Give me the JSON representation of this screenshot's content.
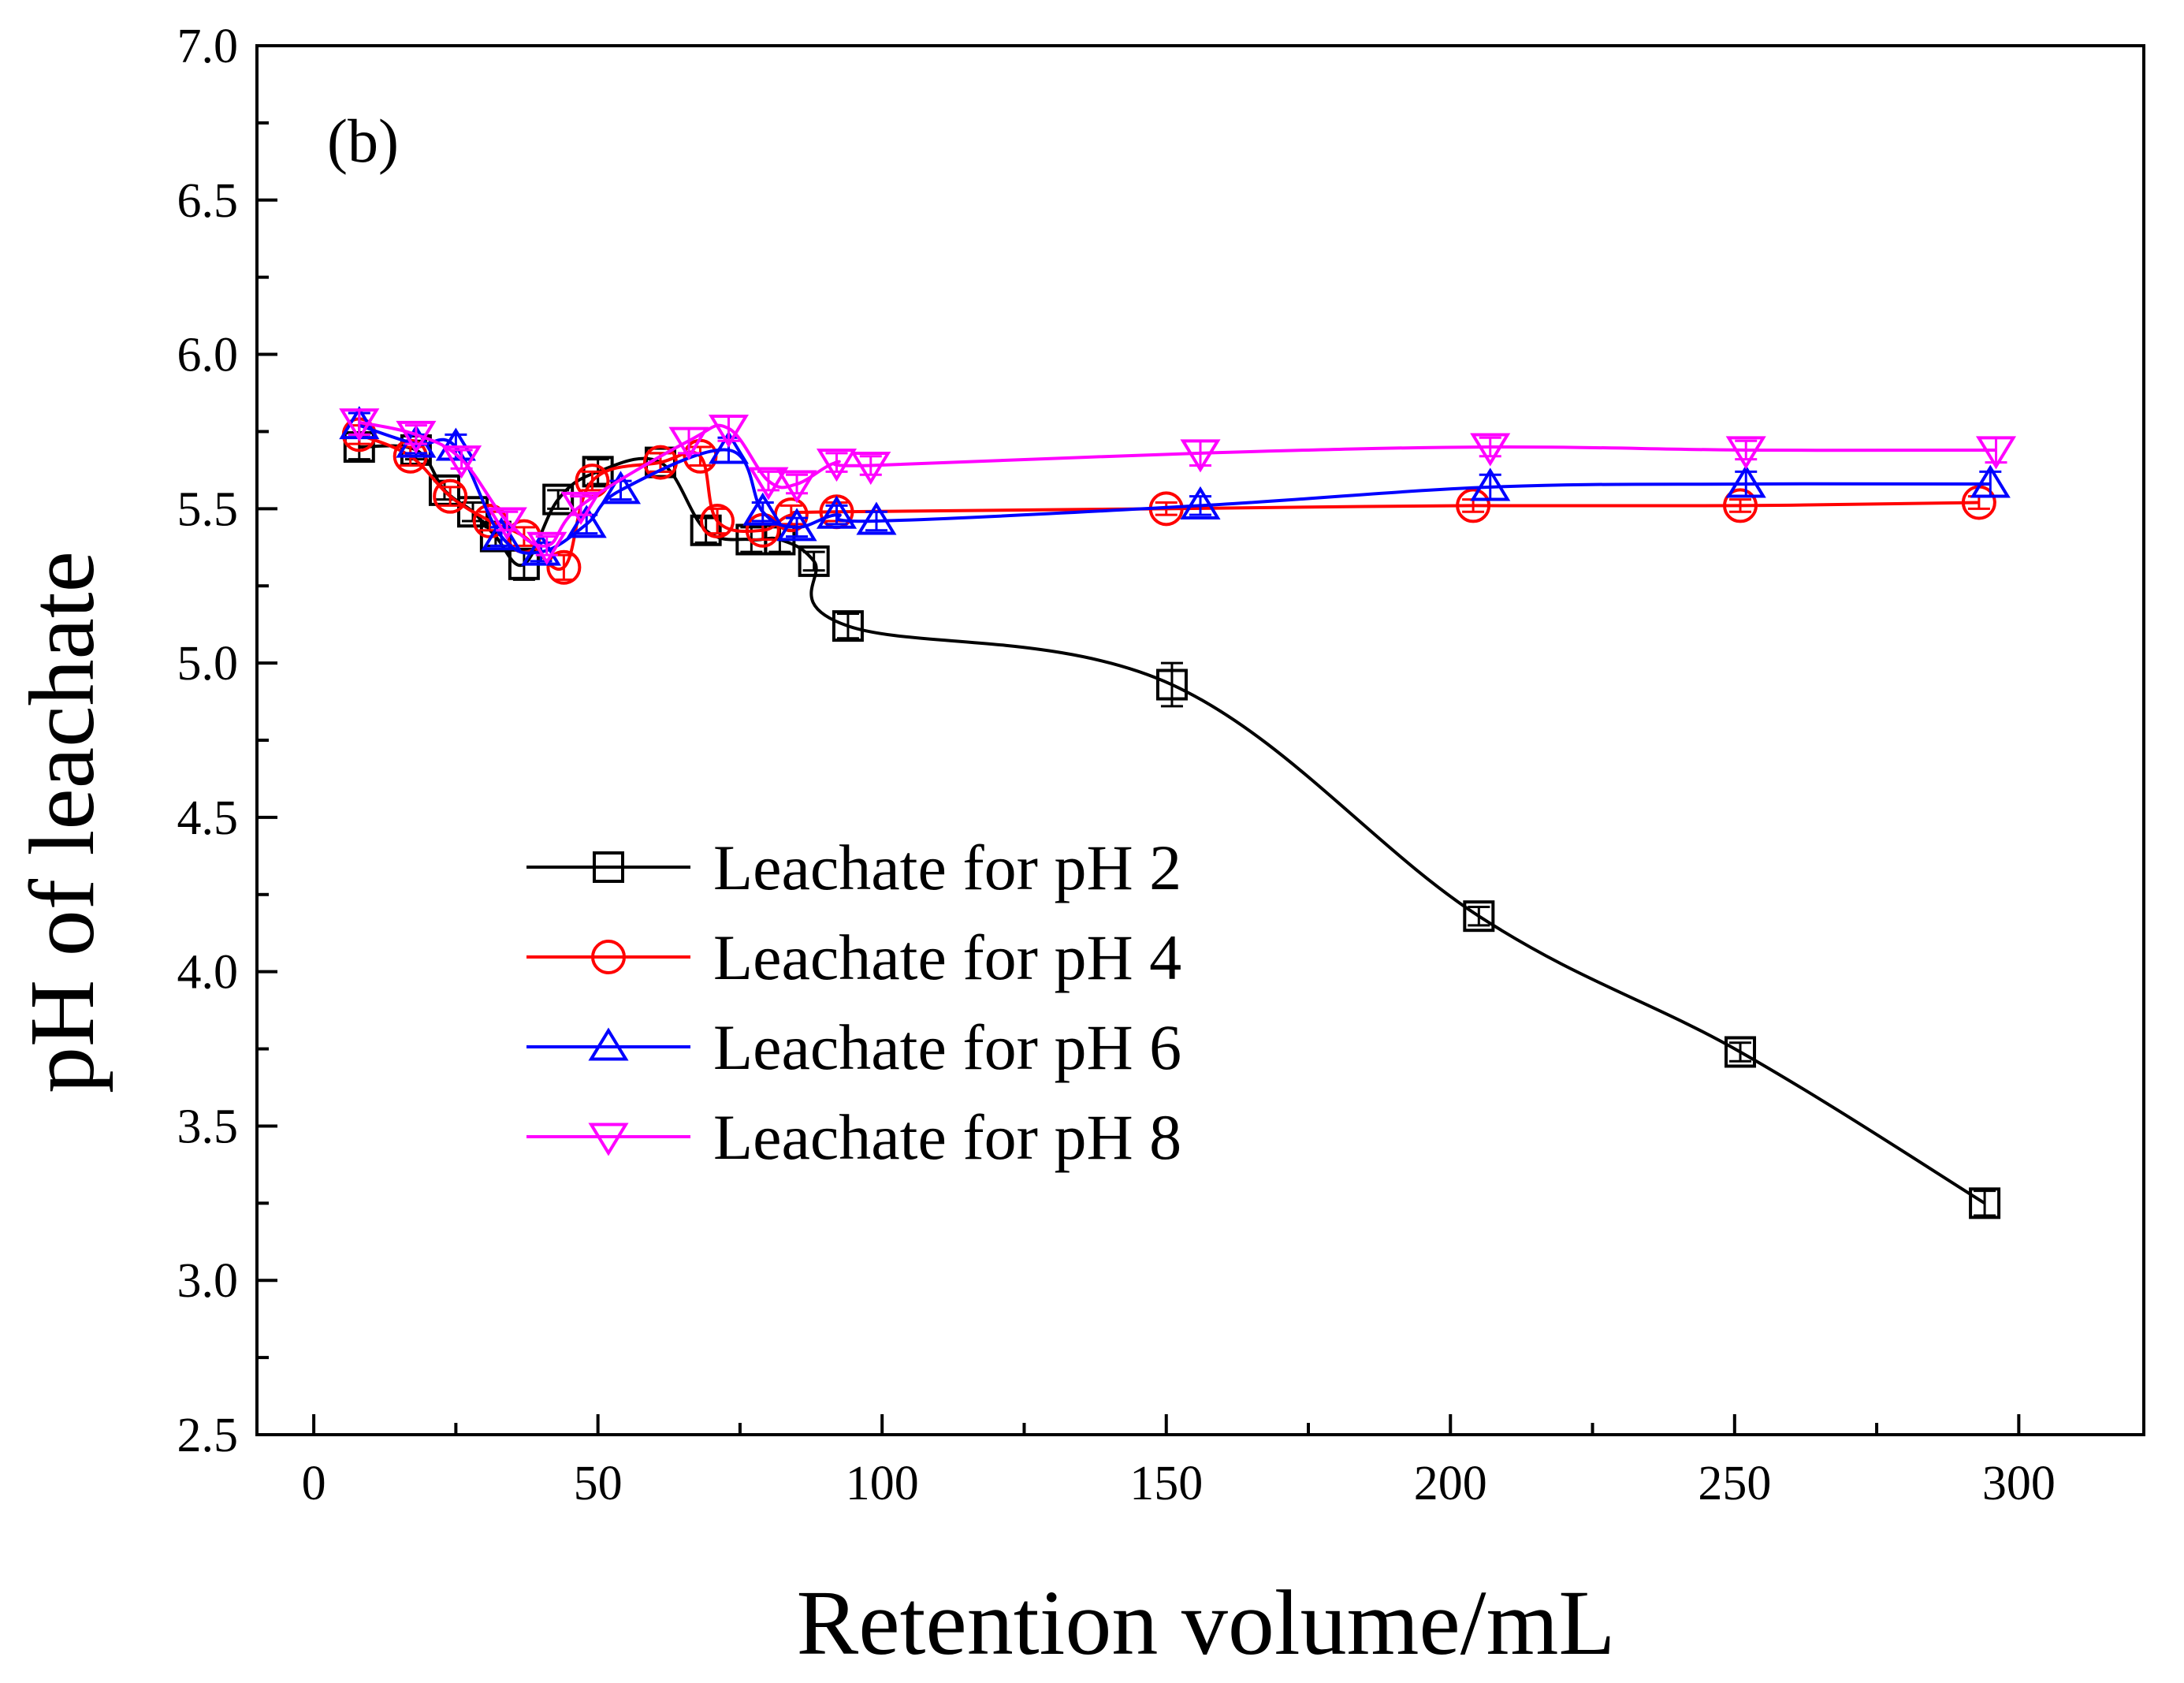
{
  "chart_data": {
    "type": "line",
    "panel_label": "(b)",
    "xlabel": "Retention volume/mL",
    "ylabel": "pH of leachate",
    "xlim": [
      -10,
      322
    ],
    "ylim": [
      2.5,
      7.0
    ],
    "x_ticks": [
      0,
      50,
      100,
      150,
      200,
      250,
      300
    ],
    "x_tick_labels": [
      "0",
      "50",
      "100",
      "150",
      "200",
      "250",
      "300"
    ],
    "y_ticks": [
      2.5,
      3.0,
      3.5,
      4.0,
      4.5,
      5.0,
      5.5,
      6.0,
      6.5,
      7.0
    ],
    "y_tick_labels": [
      "2.5",
      "3.0",
      "3.5",
      "4.0",
      "4.5",
      "5.0",
      "5.5",
      "6.0",
      "6.5",
      "7.0"
    ],
    "legend_position": "center-left",
    "grid": false,
    "series": [
      {
        "name": "Leachate for pH 2",
        "color": "#000000",
        "marker": "square",
        "x": [
          8,
          18,
          23,
          28,
          32,
          37,
          43,
          50,
          61,
          69,
          77,
          82,
          88,
          94,
          151,
          205,
          251,
          294
        ],
        "y": [
          5.7,
          5.69,
          5.56,
          5.49,
          5.41,
          5.32,
          5.53,
          5.62,
          5.65,
          5.43,
          5.4,
          5.4,
          5.33,
          5.12,
          4.93,
          4.18,
          3.74,
          3.25
        ],
        "err": [
          0.04,
          0.03,
          0.03,
          0.03,
          0.03,
          0.05,
          0.03,
          0.04,
          0.03,
          0.04,
          0.04,
          0.04,
          0.03,
          0.04,
          0.07,
          0.03,
          0.03,
          0.04
        ]
      },
      {
        "name": "Leachate for pH 4",
        "color": "#ff0000",
        "marker": "circle",
        "x": [
          8,
          17,
          24,
          31,
          37,
          44,
          49,
          61,
          68,
          71,
          79,
          84,
          92,
          150,
          204,
          251,
          293
        ],
        "y": [
          5.74,
          5.67,
          5.54,
          5.46,
          5.41,
          5.31,
          5.59,
          5.65,
          5.67,
          5.46,
          5.43,
          5.48,
          5.49,
          5.5,
          5.51,
          5.51,
          5.52
        ],
        "err": [
          0.03,
          0.03,
          0.03,
          0.03,
          0.03,
          0.04,
          0.03,
          0.03,
          0.03,
          0.04,
          0.03,
          0.03,
          0.03,
          0.02,
          0.02,
          0.02,
          0.02
        ]
      },
      {
        "name": "Leachate for pH 6",
        "color": "#0000ff",
        "marker": "triangle-up",
        "x": [
          8,
          18,
          25,
          33,
          40,
          48,
          54,
          73,
          79,
          85,
          92,
          99,
          156,
          207,
          252,
          295
        ],
        "y": [
          5.77,
          5.71,
          5.7,
          5.41,
          5.36,
          5.45,
          5.56,
          5.69,
          5.49,
          5.44,
          5.48,
          5.46,
          5.51,
          5.57,
          5.58,
          5.58
        ],
        "err": [
          0.04,
          0.03,
          0.04,
          0.03,
          0.03,
          0.03,
          0.03,
          0.04,
          0.03,
          0.03,
          0.03,
          0.03,
          0.03,
          0.04,
          0.04,
          0.04
        ]
      },
      {
        "name": "Leachate for pH 8",
        "color": "#ff00ff",
        "marker": "triangle-down",
        "x": [
          8,
          18,
          26,
          34,
          41,
          47,
          66,
          73,
          80,
          85,
          92,
          98,
          156,
          207,
          252,
          296
        ],
        "y": [
          5.78,
          5.74,
          5.66,
          5.46,
          5.38,
          5.51,
          5.72,
          5.76,
          5.59,
          5.58,
          5.65,
          5.64,
          5.68,
          5.7,
          5.69,
          5.69
        ],
        "err": [
          0.04,
          0.03,
          0.03,
          0.03,
          0.03,
          0.03,
          0.04,
          0.04,
          0.03,
          0.03,
          0.03,
          0.03,
          0.04,
          0.03,
          0.03,
          0.04
        ]
      }
    ]
  }
}
